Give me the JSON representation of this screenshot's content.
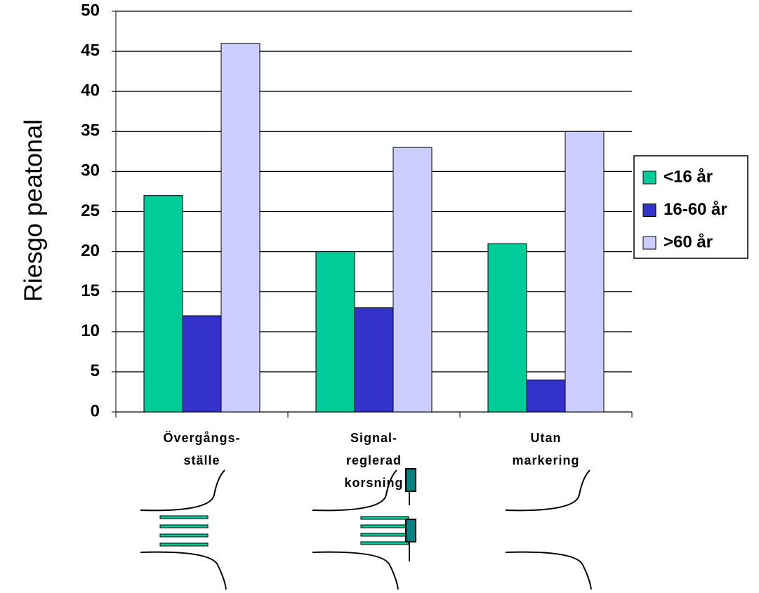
{
  "chart_data": {
    "type": "bar",
    "y_label": "Riesgo peatonal",
    "categories": [
      "Övergångs-\nställe",
      "Signal-\nreglerad\nkorsning",
      "Utan\nmarkering"
    ],
    "series": [
      {
        "name": "<16 år",
        "color": "#00cc99",
        "values": [
          27,
          20,
          21
        ]
      },
      {
        "name": "16-60 år",
        "color": "#3333cc",
        "values": [
          12,
          13,
          4
        ]
      },
      {
        "name": ">60 år",
        "color": "#ccccff",
        "values": [
          46,
          33,
          35
        ]
      }
    ],
    "ylim": [
      0,
      50
    ],
    "yticks": [
      0,
      5,
      10,
      15,
      20,
      25,
      30,
      35,
      40,
      45,
      50
    ],
    "grid": true,
    "legend": "right"
  }
}
